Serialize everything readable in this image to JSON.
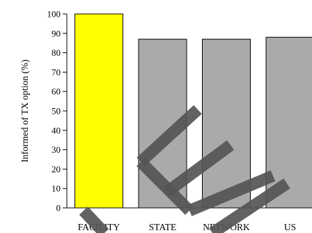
{
  "chart_data": {
    "type": "bar",
    "title": "",
    "xlabel": "",
    "ylabel": "Informed of TX option (%)",
    "categories": [
      "FACILITY",
      "STATE",
      "NETWORK",
      "US"
    ],
    "values": [
      100,
      87,
      87,
      88
    ],
    "ylim": [
      0,
      100
    ],
    "yticks": [
      0,
      10,
      20,
      30,
      40,
      50,
      60,
      70,
      80,
      90,
      100
    ],
    "grid": false,
    "legend": "none",
    "bar_colors": [
      "#ffff00",
      "#aaaaaa",
      "#aaaaaa",
      "#aaaaaa"
    ],
    "bar_edge_color": "#000000",
    "watermark_color": "#555555"
  }
}
